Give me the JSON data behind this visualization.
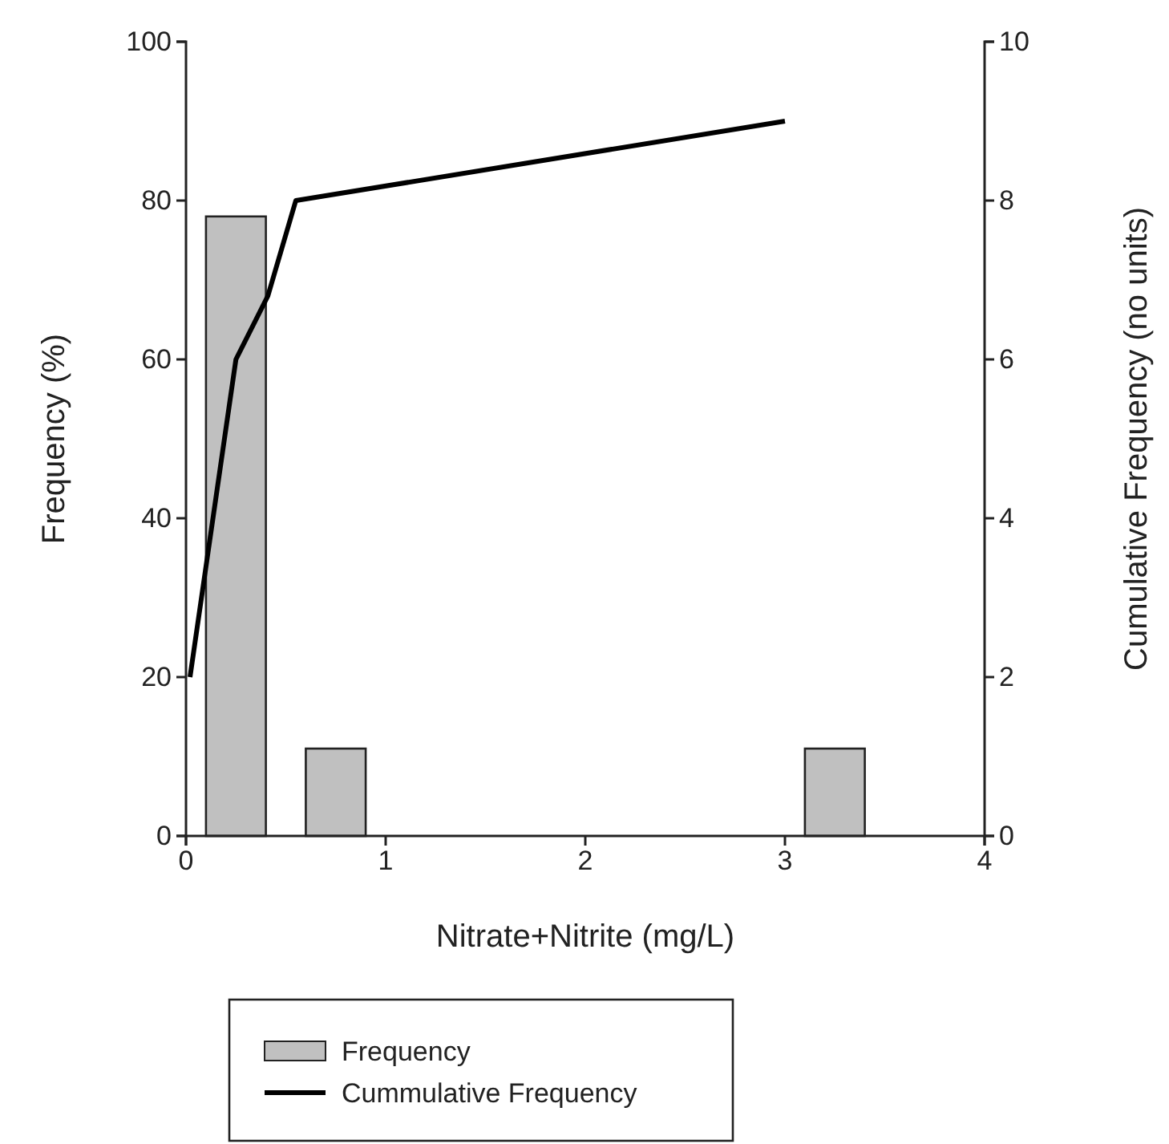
{
  "chart_data": {
    "type": "bar",
    "xlabel": "Nitrate+Nitrite (mg/L)",
    "ylabel": "Frequency (%)",
    "y2label": "Cumulative Frequency (no units)",
    "xlim": [
      0,
      4
    ],
    "xticks": [
      0,
      1,
      2,
      3,
      4
    ],
    "ylim": [
      0,
      100
    ],
    "yticks": [
      0,
      20,
      40,
      60,
      80,
      100
    ],
    "y2lim": [
      0,
      10
    ],
    "y2ticks": [
      0,
      2,
      4,
      6,
      8,
      10
    ],
    "grid": false,
    "legend": "bottom",
    "series": [
      {
        "name": "Frequency",
        "color": "#c0c0c0",
        "x": [
          0.25,
          0.75,
          3.25
        ],
        "values": [
          78,
          11,
          11
        ]
      },
      {
        "name": "Cummulative Frequency",
        "type": "line",
        "axis": "y2",
        "color": "#000000",
        "x": [
          0.02,
          0.25,
          0.41,
          0.55,
          3
        ],
        "values": [
          2,
          6,
          6.8,
          8,
          9
        ]
      }
    ]
  }
}
